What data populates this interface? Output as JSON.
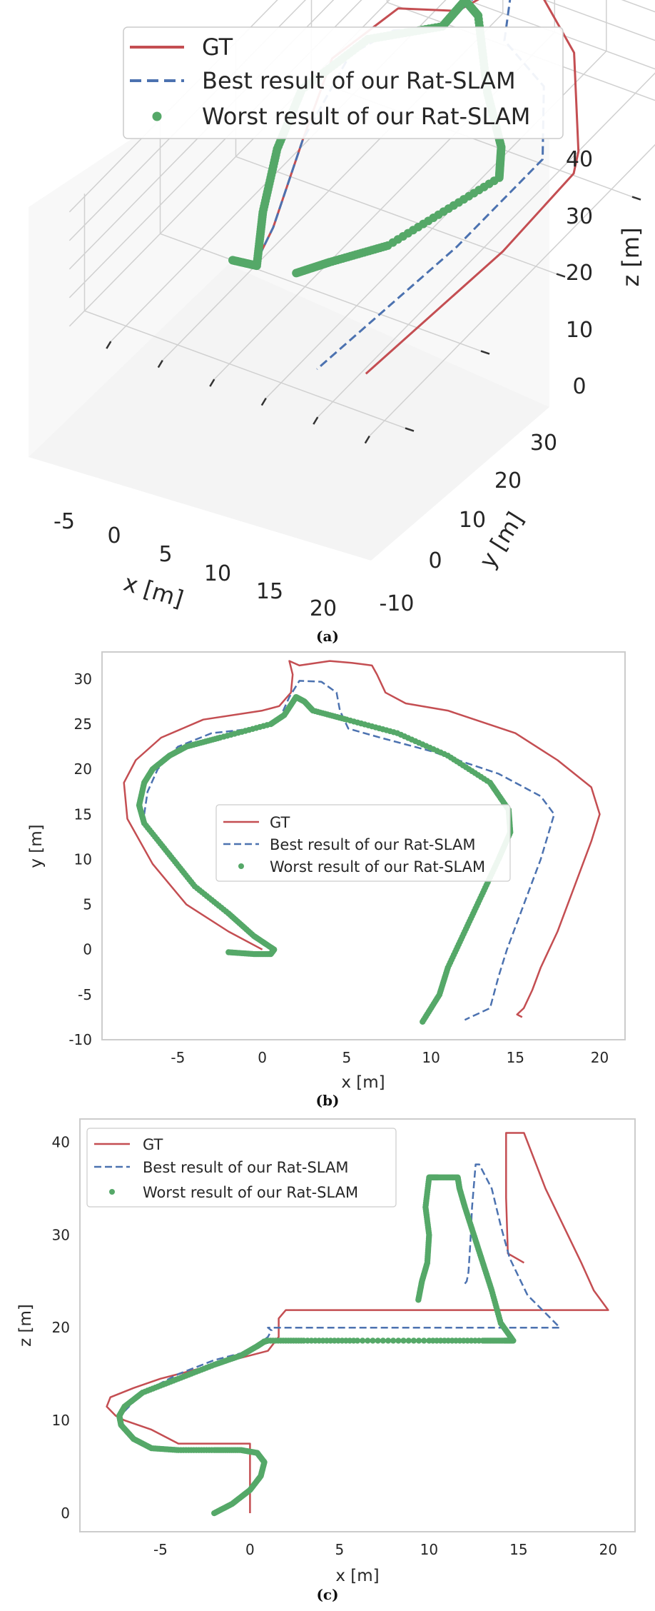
{
  "chart_data": [
    {
      "panel": "(a)",
      "type": "line",
      "projection": "3d",
      "xlabel": "x [m]",
      "ylabel": "y [m]",
      "zlabel": "z [m]",
      "xticks": [
        -5,
        0,
        5,
        10,
        15,
        20
      ],
      "yticks": [
        -10,
        0,
        10,
        20,
        30
      ],
      "zticks": [
        0,
        10,
        20,
        30,
        40
      ],
      "xlim": [
        -9,
        22
      ],
      "ylim": [
        -12,
        33
      ],
      "zlim": [
        0,
        41
      ],
      "legend_position": "top",
      "grid": true,
      "series": [
        {
          "name": "GT",
          "style": "solid",
          "color": "#c44e52",
          "points": [
            [
              0,
              0,
              0
            ],
            [
              -1,
              4,
              2
            ],
            [
              -4,
              12,
              7
            ],
            [
              -7,
              20,
              10
            ],
            [
              -5,
              26,
              14
            ],
            [
              0,
              27,
              17
            ],
            [
              2,
              30,
              20
            ],
            [
              2,
              32,
              22
            ],
            [
              6,
              30,
              22
            ],
            [
              12,
              26,
              21
            ],
            [
              19,
              17,
              20
            ],
            [
              20,
              15,
              19
            ],
            [
              19,
              7,
              12
            ],
            [
              16,
              -7,
              3
            ]
          ]
        },
        {
          "name": "Best result of our Rat-SLAM",
          "style": "dashed",
          "color": "#4c72b0",
          "points": [
            [
              0,
              0,
              0
            ],
            [
              -1,
              4,
              2
            ],
            [
              -4,
              12,
              7
            ],
            [
              -6,
              21,
              10
            ],
            [
              -4,
              24,
              13
            ],
            [
              0,
              25,
              17
            ],
            [
              1,
              30,
              20
            ],
            [
              3,
              30,
              20
            ],
            [
              6,
              25,
              20
            ],
            [
              12,
              22,
              20
            ],
            [
              17,
              15,
              20
            ],
            [
              16,
              5,
              15
            ],
            [
              12,
              -8,
              2
            ]
          ]
        },
        {
          "name": "Worst result of our Rat-SLAM",
          "style": "dots",
          "color": "#55a868",
          "points": [
            [
              -2,
              0,
              0
            ],
            [
              0.7,
              -0.5,
              3
            ],
            [
              -2,
              4,
              6
            ],
            [
              -5,
              10,
              8
            ],
            [
              -7,
              16,
              10
            ],
            [
              -5,
              22,
              14
            ],
            [
              0,
              25,
              17
            ],
            [
              0,
              28,
              18
            ],
            [
              2,
              27,
              18
            ],
            [
              8,
              20,
              18
            ],
            [
              13,
              15,
              19
            ],
            [
              15,
              12,
              19
            ],
            [
              13,
              0,
              25
            ],
            [
              11,
              -5,
              30
            ],
            [
              10,
              -8,
              33
            ]
          ]
        }
      ]
    },
    {
      "panel": "(b)",
      "type": "line",
      "xlabel": "x [m]",
      "ylabel": "y [m]",
      "xlim": [
        -9.5,
        21.5
      ],
      "ylim": [
        -10,
        33
      ],
      "xticks": [
        -5,
        0,
        5,
        10,
        15,
        20
      ],
      "yticks": [
        -10,
        -5,
        0,
        5,
        10,
        15,
        20,
        25,
        30
      ],
      "legend_position": "center",
      "grid": false,
      "series": [
        {
          "name": "GT",
          "style": "solid",
          "color": "#c44e52",
          "x": [
            0,
            -2,
            -4.5,
            -6.5,
            -8,
            -8.2,
            -7.5,
            -6,
            -3.5,
            0,
            1,
            1.7,
            1.8,
            1.6,
            2.2,
            4,
            5.3,
            6.5,
            6.8,
            7.3,
            8.5,
            11,
            15,
            17.5,
            19.5,
            20,
            19.5,
            18.5,
            17.5,
            16.5,
            16,
            15.5,
            15.1,
            15.4
          ],
          "y": [
            0,
            2,
            5,
            9.5,
            14.5,
            18.5,
            21,
            23.5,
            25.5,
            26.5,
            27,
            28.5,
            30.5,
            32,
            31.5,
            32,
            31.8,
            31.5,
            30.5,
            28.5,
            27.3,
            26.5,
            24,
            21,
            18,
            15,
            12,
            7,
            2,
            -2,
            -4.5,
            -6.5,
            -7.2,
            -7.5
          ]
        },
        {
          "name": "Best result of our Rat-SLAM",
          "style": "dashed",
          "color": "#4c72b0",
          "x": [
            -7,
            -6.8,
            -6.2,
            -5,
            -3,
            -0.5,
            1,
            1.6,
            2.2,
            3.5,
            4.4,
            4.6,
            5.1,
            7,
            10,
            14,
            16.5,
            17.3,
            16.5,
            15.5,
            14.5,
            14,
            13.5,
            12
          ],
          "y": [
            15,
            17.5,
            20,
            22.5,
            24,
            24.5,
            25.5,
            28,
            29.8,
            29.7,
            28.5,
            26.5,
            24.5,
            23.5,
            22,
            19.5,
            17,
            15,
            10,
            5,
            0,
            -3,
            -6.5,
            -7.8
          ]
        },
        {
          "name": "Worst result of our Rat-SLAM",
          "style": "dots",
          "color": "#55a868",
          "x": [
            -2,
            -0.5,
            0.5,
            0.7,
            -0.5,
            -2,
            -4,
            -5.5,
            -7,
            -7.3,
            -7,
            -6.5,
            -5.5,
            -4.5,
            -2.5,
            0.5,
            1.3,
            2,
            2.5,
            3,
            5,
            8,
            11,
            13.5,
            14.6,
            14.7,
            14,
            13,
            12,
            11,
            10.5,
            9.5
          ],
          "y": [
            -0.3,
            -0.5,
            -0.5,
            0,
            1.5,
            4,
            7,
            10.5,
            14,
            16,
            18.5,
            20,
            21.5,
            22.5,
            23.5,
            25,
            26,
            28,
            27.5,
            26.5,
            25.5,
            24,
            21.5,
            18.5,
            15.5,
            13,
            10,
            6,
            2,
            -2,
            -5,
            -8
          ]
        }
      ]
    },
    {
      "panel": "(c)",
      "type": "line",
      "xlabel": "x [m]",
      "ylabel": "z [m]",
      "xlim": [
        -9.5,
        21.5
      ],
      "ylim": [
        -2,
        42.5
      ],
      "xticks": [
        -5,
        0,
        5,
        10,
        15,
        20
      ],
      "yticks": [
        0,
        10,
        20,
        30,
        40
      ],
      "legend_position": "top-left",
      "grid": false,
      "series": [
        {
          "name": "GT",
          "style": "solid",
          "color": "#c44e52",
          "x": [
            0,
            0,
            0,
            -2,
            -4,
            -4.5,
            -5.5,
            -7,
            -7.5,
            -8,
            -7.8,
            -6.5,
            -5,
            -3,
            -1,
            1,
            1.6,
            1.6,
            2,
            6,
            10,
            15,
            19.5,
            20,
            19.2,
            18.5,
            17.5,
            16.5,
            15.3,
            14.3,
            14.3,
            14.4,
            15.3
          ],
          "z": [
            0,
            4,
            7.5,
            7.5,
            7.5,
            8,
            9,
            10,
            10.5,
            11.5,
            12.5,
            13.5,
            14.5,
            15.5,
            16.5,
            17.5,
            19,
            21,
            21.9,
            21.9,
            21.9,
            21.9,
            21.9,
            21.9,
            24,
            27,
            31,
            35,
            41,
            41,
            34,
            28,
            27
          ]
        },
        {
          "name": "Best result of our Rat-SLAM",
          "style": "dashed",
          "color": "#4c72b0",
          "x": [
            -7,
            -6,
            -4,
            -2,
            0,
            1,
            1.2,
            1,
            5,
            10,
            15,
            17.3,
            16.8,
            15.5,
            14.5,
            14,
            13.5,
            12.8,
            12.6,
            12.4,
            12.3,
            12.2,
            12.1,
            11.9
          ],
          "z": [
            11,
            13,
            15,
            16.5,
            17.5,
            19,
            19.7,
            20,
            20,
            20,
            20,
            20,
            21,
            23.5,
            27.5,
            31,
            35,
            37.6,
            37.6,
            33,
            29,
            26,
            25,
            24.5
          ]
        },
        {
          "name": "Worst result of our Rat-SLAM",
          "style": "dots",
          "color": "#55a868",
          "x": [
            -2,
            -1,
            0,
            0.6,
            0.8,
            0.4,
            -0.5,
            -2,
            -4,
            -5.5,
            -6.5,
            -7.2,
            -7.3,
            -7,
            -6,
            -4,
            -2,
            -0.5,
            0.4,
            0.8,
            0.8,
            1,
            3,
            6,
            10,
            13,
            14.2,
            14.7,
            14,
            13.5,
            13,
            12.5,
            12,
            11.7,
            11.6,
            10.5,
            10,
            9.8,
            10,
            9.9,
            9.6,
            9.4
          ],
          "z": [
            0,
            1,
            2.5,
            4,
            5.5,
            6.5,
            6.8,
            6.8,
            6.8,
            7,
            8,
            9.5,
            10.5,
            11.5,
            13,
            14.5,
            16,
            17,
            18,
            18.5,
            18.5,
            18.6,
            18.6,
            18.6,
            18.6,
            18.6,
            18.6,
            18.6,
            20.5,
            24,
            27,
            30,
            33,
            35,
            36.2,
            36.2,
            36.2,
            33,
            30,
            27,
            25,
            23
          ]
        }
      ]
    }
  ],
  "captions": {
    "a": "(a)",
    "b": "(b)",
    "c": "(c)"
  }
}
